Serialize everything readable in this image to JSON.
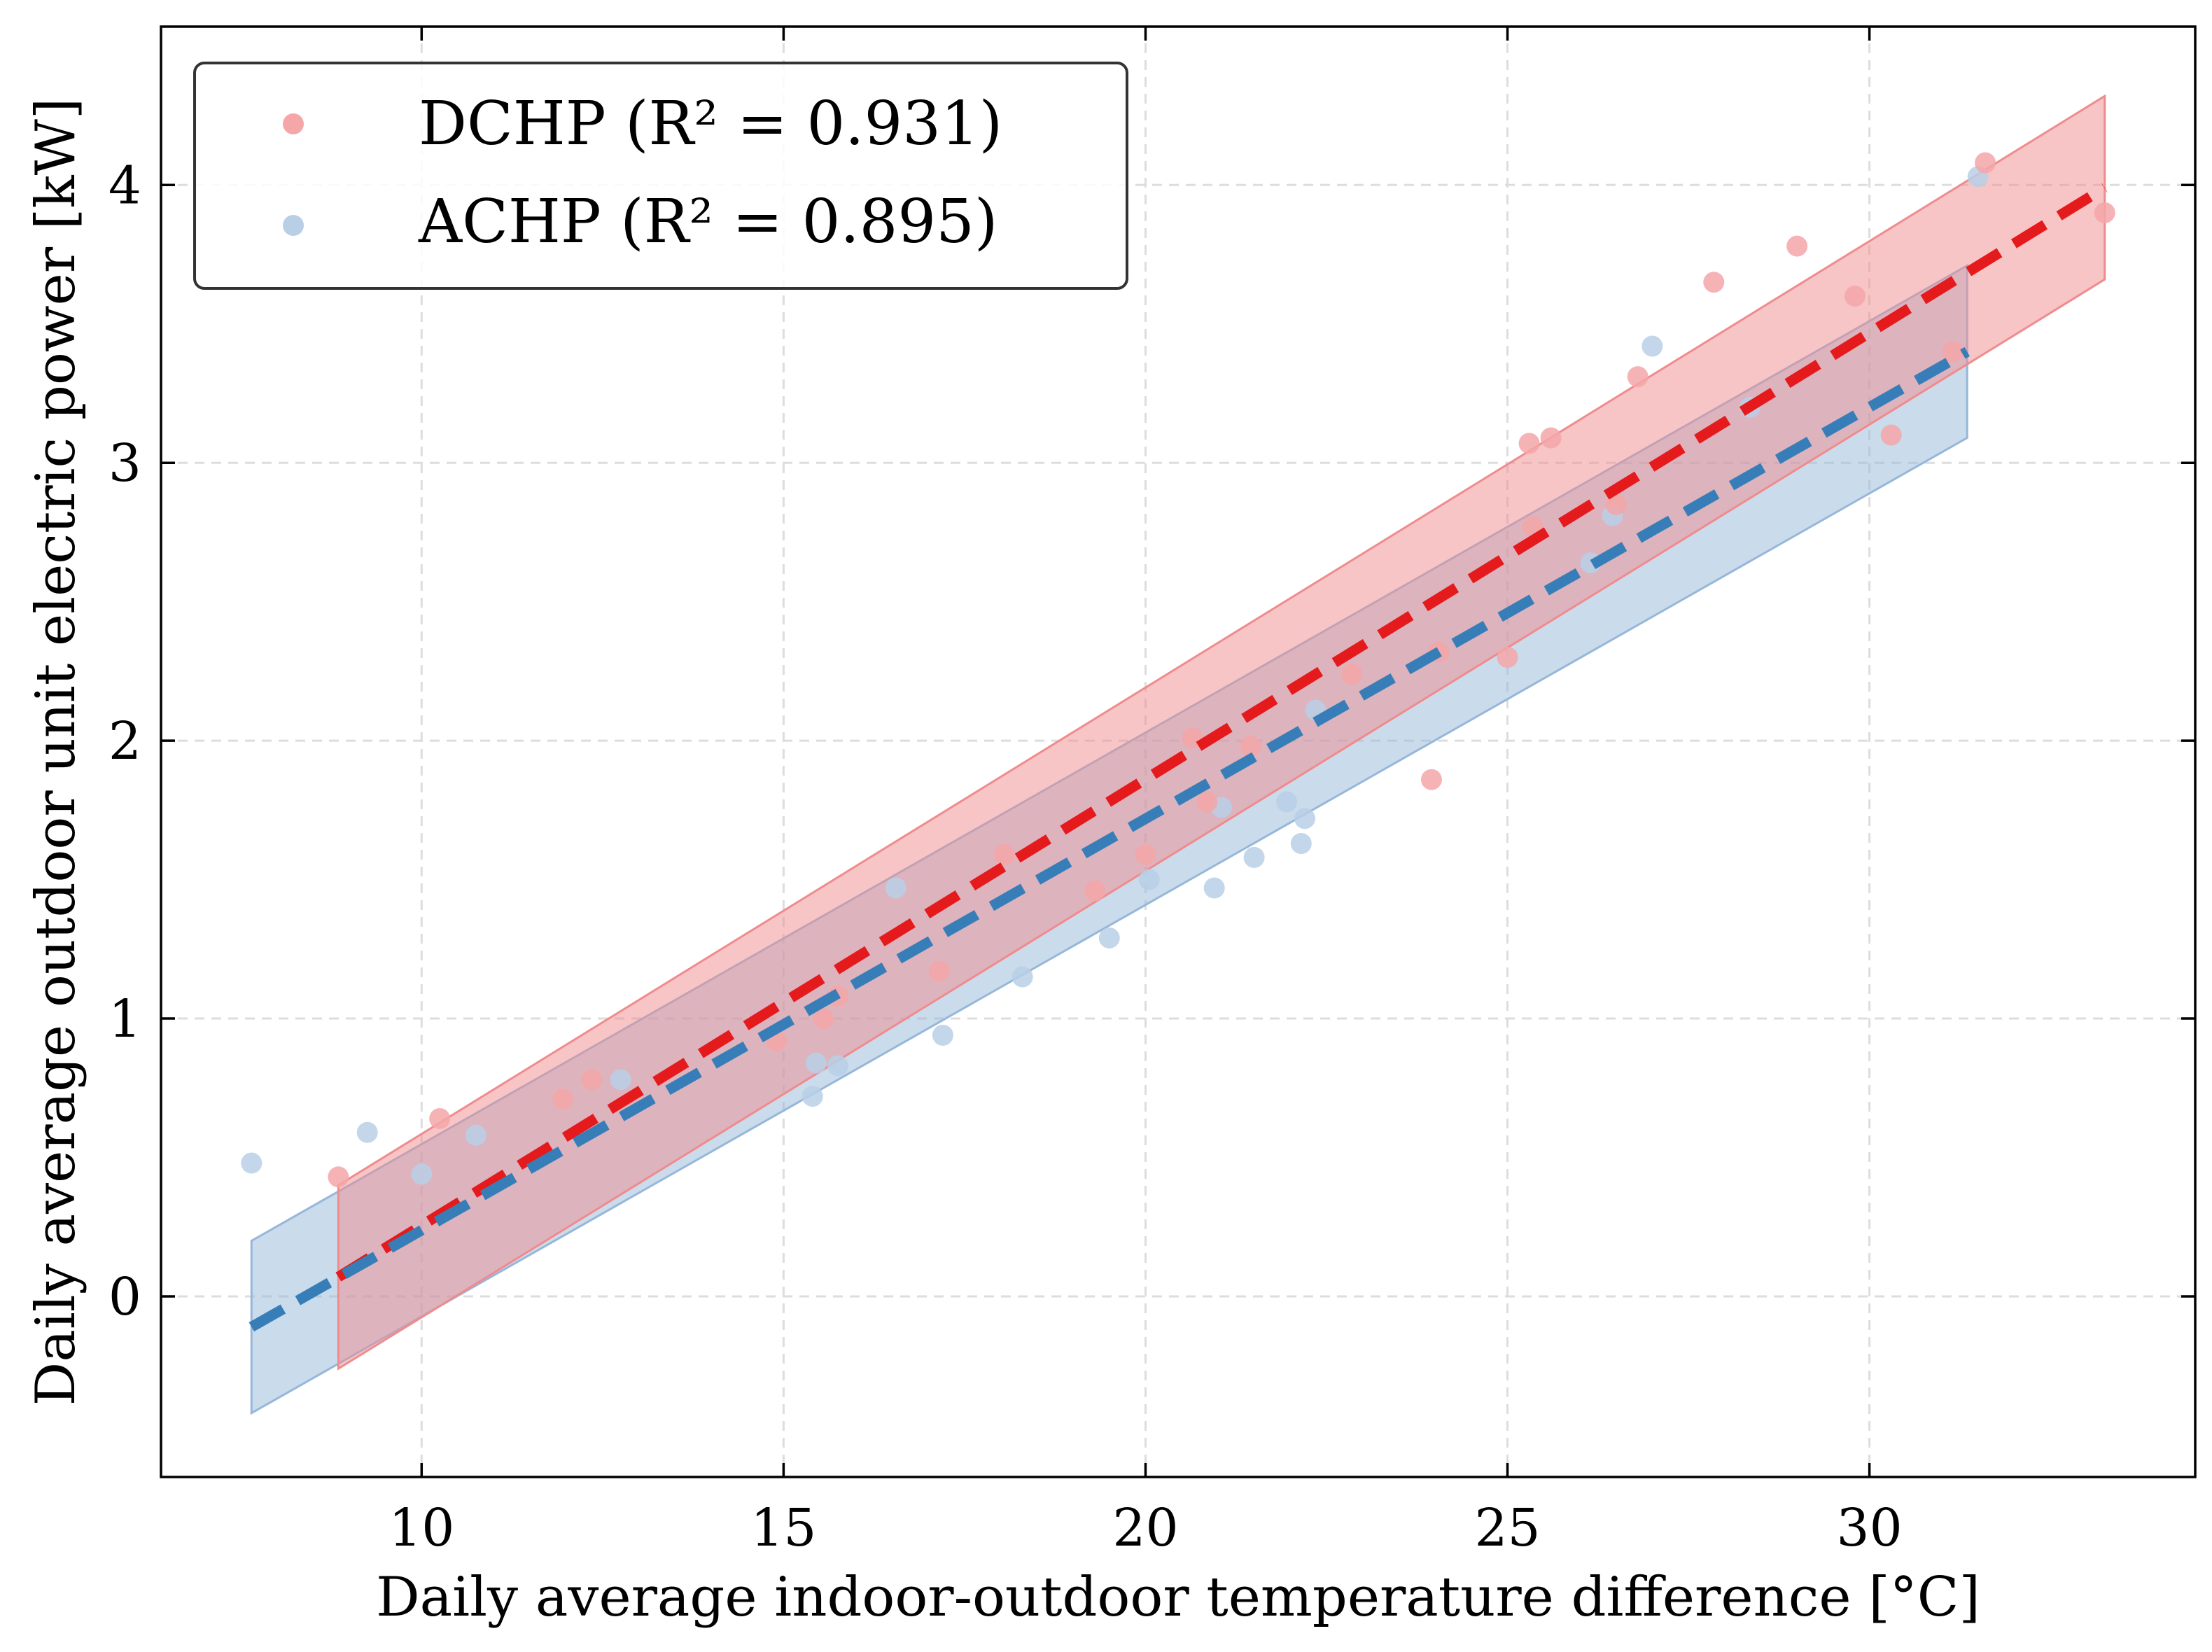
{
  "chart_data": {
    "type": "scatter",
    "title": "",
    "xlabel": "Daily average indoor-outdoor temperature difference [°C]",
    "ylabel": "Daily average outdoor unit electric power [kW]",
    "xlim": [
      6.4,
      34.5
    ],
    "ylim": [
      -0.65,
      4.57
    ],
    "xticks": [
      10,
      15,
      20,
      25,
      30
    ],
    "yticks": [
      0,
      1,
      2,
      3,
      4
    ],
    "grid": true,
    "legend_position": "top-left",
    "series": [
      {
        "name": "DCHP",
        "label": "DCHP (R² = 0.931)",
        "r2": 0.931,
        "color": "#e41a1c",
        "point_color": "#f4a6a8",
        "band_color": "#f08b8d",
        "fit": {
          "x": [
            8.85,
            33.25
          ],
          "y": [
            0.07,
            3.99
          ]
        },
        "band_halfwidth": 0.33,
        "points": [
          [
            8.85,
            0.43
          ],
          [
            10.25,
            0.64
          ],
          [
            11.95,
            0.71
          ],
          [
            12.35,
            0.78
          ],
          [
            14.9,
            0.92
          ],
          [
            15.55,
            1.0
          ],
          [
            15.75,
            1.08
          ],
          [
            17.15,
            1.17
          ],
          [
            18.05,
            1.59
          ],
          [
            19.3,
            1.46
          ],
          [
            20.0,
            1.59
          ],
          [
            20.65,
            2.01
          ],
          [
            20.85,
            1.78
          ],
          [
            21.45,
            1.98
          ],
          [
            22.85,
            2.24
          ],
          [
            23.95,
            1.86
          ],
          [
            24.05,
            2.32
          ],
          [
            25.0,
            2.3
          ],
          [
            25.3,
            3.07
          ],
          [
            25.35,
            2.77
          ],
          [
            25.6,
            3.09
          ],
          [
            26.5,
            2.85
          ],
          [
            26.8,
            3.31
          ],
          [
            27.85,
            3.65
          ],
          [
            29.0,
            3.78
          ],
          [
            29.8,
            3.6
          ],
          [
            30.3,
            3.1
          ],
          [
            31.15,
            3.4
          ],
          [
            31.6,
            4.08
          ],
          [
            33.25,
            3.9
          ]
        ]
      },
      {
        "name": "ACHP",
        "label": "ACHP (R² = 0.895)",
        "r2": 0.895,
        "color": "#377eb8",
        "point_color": "#b9cfe6",
        "band_color": "#96b7da",
        "fit": {
          "x": [
            7.65,
            31.35
          ],
          "y": [
            -0.11,
            3.4
          ]
        },
        "band_halfwidth": 0.31,
        "points": [
          [
            7.65,
            0.48
          ],
          [
            9.25,
            0.59
          ],
          [
            10.0,
            0.44
          ],
          [
            10.75,
            0.58
          ],
          [
            12.75,
            0.78
          ],
          [
            15.4,
            0.72
          ],
          [
            15.45,
            0.84
          ],
          [
            15.75,
            0.83
          ],
          [
            16.55,
            1.47
          ],
          [
            17.2,
            0.94
          ],
          [
            18.3,
            1.15
          ],
          [
            19.5,
            1.29
          ],
          [
            20.05,
            1.5
          ],
          [
            20.95,
            1.47
          ],
          [
            21.05,
            1.76
          ],
          [
            21.5,
            1.58
          ],
          [
            21.95,
            1.78
          ],
          [
            22.15,
            1.63
          ],
          [
            22.2,
            1.72
          ],
          [
            22.35,
            2.11
          ],
          [
            26.15,
            2.64
          ],
          [
            26.45,
            2.81
          ],
          [
            27.0,
            3.42
          ],
          [
            28.35,
            3.2
          ],
          [
            31.5,
            4.03
          ]
        ]
      }
    ]
  }
}
